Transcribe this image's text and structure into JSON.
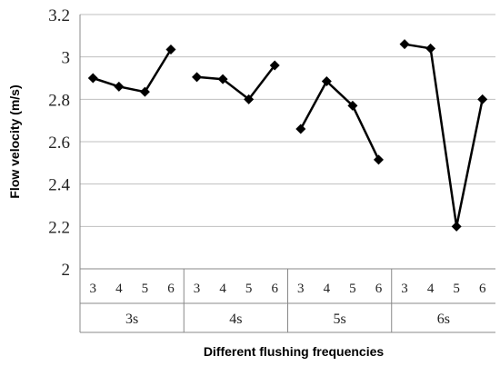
{
  "chart_data": {
    "type": "line",
    "xlabel": "Different flushing frequencies",
    "ylabel": "Flow velocity (m/s)",
    "ylim": [
      2,
      3.2
    ],
    "yticks": [
      "2",
      "2.2",
      "2.4",
      "2.6",
      "2.8",
      "3",
      "3.2"
    ],
    "grid": true,
    "groups": [
      {
        "label": "3s",
        "categories": [
          "3",
          "4",
          "5",
          "6"
        ],
        "values": [
          2.9,
          2.86,
          2.835,
          3.035
        ]
      },
      {
        "label": "4s",
        "categories": [
          "3",
          "4",
          "5",
          "6"
        ],
        "values": [
          2.905,
          2.895,
          2.8,
          2.96
        ]
      },
      {
        "label": "5s",
        "categories": [
          "3",
          "4",
          "5",
          "6"
        ],
        "values": [
          2.66,
          2.885,
          2.77,
          2.515
        ]
      },
      {
        "label": "6s",
        "categories": [
          "3",
          "4",
          "5",
          "6"
        ],
        "values": [
          3.06,
          3.04,
          2.2,
          2.8
        ]
      }
    ],
    "colors": {
      "line": "#000000",
      "grid": "#bfbfbf",
      "axis": "#888888"
    }
  }
}
